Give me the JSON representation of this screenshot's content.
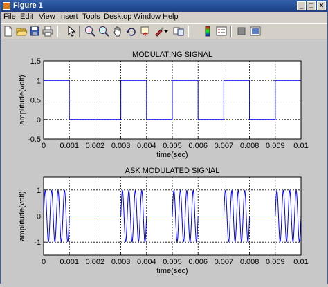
{
  "window": {
    "title": "Figure 1",
    "minimize": "_",
    "maximize": "□",
    "close": "×"
  },
  "menu": [
    "File",
    "Edit",
    "View",
    "Insert",
    "Tools",
    "Desktop",
    "Window",
    "Help"
  ],
  "toolbar": [
    "new-figure-icon",
    "open-file-icon",
    "save-icon",
    "print-icon",
    "pointer-icon",
    "zoom-in-icon",
    "zoom-out-icon",
    "pan-hand-icon",
    "rotate-3d-icon",
    "data-cursor-icon",
    "brush-icon",
    "link-icon",
    "colorbar-icon",
    "legend-icon",
    "hide-plot-tools-icon",
    "show-plot-tools-icon"
  ],
  "chart_data": [
    {
      "type": "line",
      "title": "MODULATING SIGNAL",
      "xlabel": "time(sec)",
      "ylabel": "amplitude(volt)",
      "xlim": [
        0,
        0.01
      ],
      "ylim": [
        -0.5,
        1.5
      ],
      "xticks": [
        "0",
        "0.001",
        "0.002",
        "0.003",
        "0.004",
        "0.005",
        "0.006",
        "0.007",
        "0.008",
        "0.009",
        "0.01"
      ],
      "yticks": [
        "-0.5",
        "0",
        "0.5",
        "1",
        "1.5"
      ],
      "grid": true,
      "bits": [
        1,
        0,
        0,
        1,
        0,
        1,
        0,
        1,
        0,
        1
      ],
      "x": [
        0,
        0.001,
        0.001,
        0.003,
        0.003,
        0.004,
        0.004,
        0.005,
        0.005,
        0.006,
        0.006,
        0.007,
        0.007,
        0.008,
        0.008,
        0.009,
        0.009,
        0.01
      ],
      "y": [
        1,
        1,
        0,
        0,
        1,
        1,
        0,
        0,
        1,
        1,
        0,
        0,
        1,
        1,
        0,
        0,
        1,
        1
      ],
      "line_color": "#0000ff"
    },
    {
      "type": "line",
      "title": "ASK MODULATED SIGNAL",
      "xlabel": "time(sec)",
      "ylabel": "amplitude(volt)",
      "xlim": [
        0,
        0.01
      ],
      "ylim": [
        -1.5,
        1.5
      ],
      "xticks": [
        "0",
        "0.001",
        "0.002",
        "0.003",
        "0.004",
        "0.005",
        "0.006",
        "0.007",
        "0.008",
        "0.009",
        "0.01"
      ],
      "yticks": [
        "-1",
        "0",
        "1"
      ],
      "grid": true,
      "bits": [
        1,
        0,
        0,
        1,
        0,
        1,
        0,
        1,
        0,
        1
      ],
      "carrier_cycles_per_bit": 4,
      "amplitude": 1,
      "line_color": "#0000ff"
    }
  ]
}
